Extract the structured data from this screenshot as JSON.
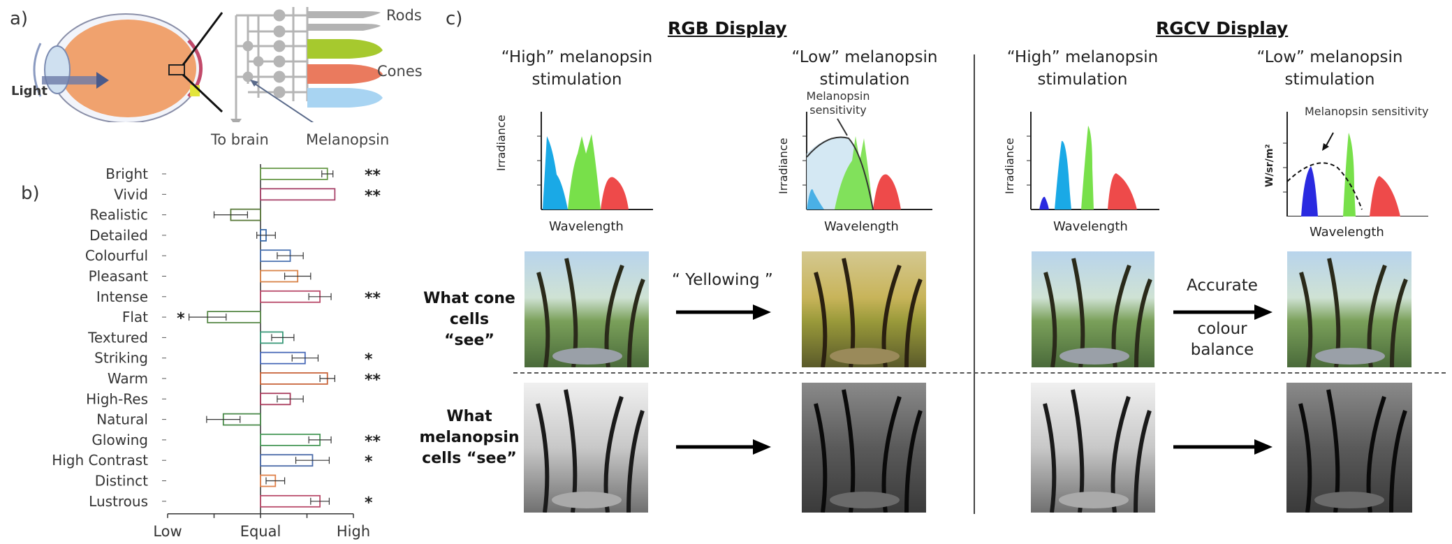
{
  "panel_a": {
    "label": "a)",
    "light": "Light",
    "rods": "Rods",
    "cones": "Cones",
    "to_brain": "To brain",
    "melanopsin": "Melanopsin",
    "colors": {
      "rods": "#b3b3b3",
      "cone_green": "#a6c92e",
      "cone_red": "#ea7a5e",
      "cone_blue": "#a8d4f2",
      "eye": "#f0a070"
    }
  },
  "panel_b": {
    "label": "b)",
    "x_ticks": [
      "Low",
      "Equal",
      "High"
    ]
  },
  "chart_data": {
    "type": "bar",
    "orientation": "horizontal",
    "categories": [
      "Bright",
      "Vivid",
      "Realistic",
      "Detailed",
      "Colourful",
      "Pleasant",
      "Intense",
      "Flat",
      "Textured",
      "Striking",
      "Warm",
      "High-Res",
      "Natural",
      "Glowing",
      "High Contrast",
      "Distinct",
      "Lustrous"
    ],
    "values": [
      0.72,
      0.8,
      -0.32,
      0.06,
      0.32,
      0.4,
      0.64,
      -0.57,
      0.24,
      0.48,
      0.72,
      0.32,
      -0.4,
      0.64,
      0.56,
      0.16,
      0.64
    ],
    "errors": [
      0.06,
      0.0,
      0.18,
      0.1,
      0.14,
      0.14,
      0.12,
      0.2,
      0.12,
      0.14,
      0.08,
      0.14,
      0.18,
      0.12,
      0.18,
      0.1,
      0.1
    ],
    "significance": [
      "**",
      "**",
      "",
      "",
      "",
      "",
      "**",
      "*",
      "",
      "*",
      "**",
      "",
      "",
      "**",
      "*",
      "",
      "*"
    ],
    "colors": [
      "#6a9a4a",
      "#a8436a",
      "#5a7a3a",
      "#3a6aa8",
      "#4a72b0",
      "#d9844a",
      "#b84a6a",
      "#5a8a4a",
      "#3a9a7a",
      "#4a6ab8",
      "#c8643a",
      "#a8385a",
      "#4a8a4a",
      "#4a9a5a",
      "#4a6aa8",
      "#e0804a",
      "#b84a6a"
    ],
    "xlim": [
      -1,
      1
    ],
    "xtick_labels": [
      "Low",
      "Equal",
      "High"
    ]
  },
  "panel_c": {
    "label": "c)",
    "rgb_header": "RGB Display",
    "rgcv_header": "RGCV Display",
    "col1_title": "“High” melanopsin stimulation",
    "col2_title": "“Low” melanopsin stimulation",
    "col3_title": "“High” melanopsin stimulation",
    "col4_title": "“Low” melanopsin stimulation",
    "irradiance": "Irradiance",
    "wavelength": "Wavelength",
    "wsr": "W/sr/m²",
    "mel_sens_2": "Melanopsin sensitivity",
    "mel_sens_4": "Melanopsin sensitivity",
    "cone_caption": "What cone cells “see”",
    "mel_caption": "What melanopsin cells “see”",
    "yellowing": "“ Yellowing ”",
    "accurate": "Accurate",
    "colour": "colour",
    "balance": "balance"
  }
}
